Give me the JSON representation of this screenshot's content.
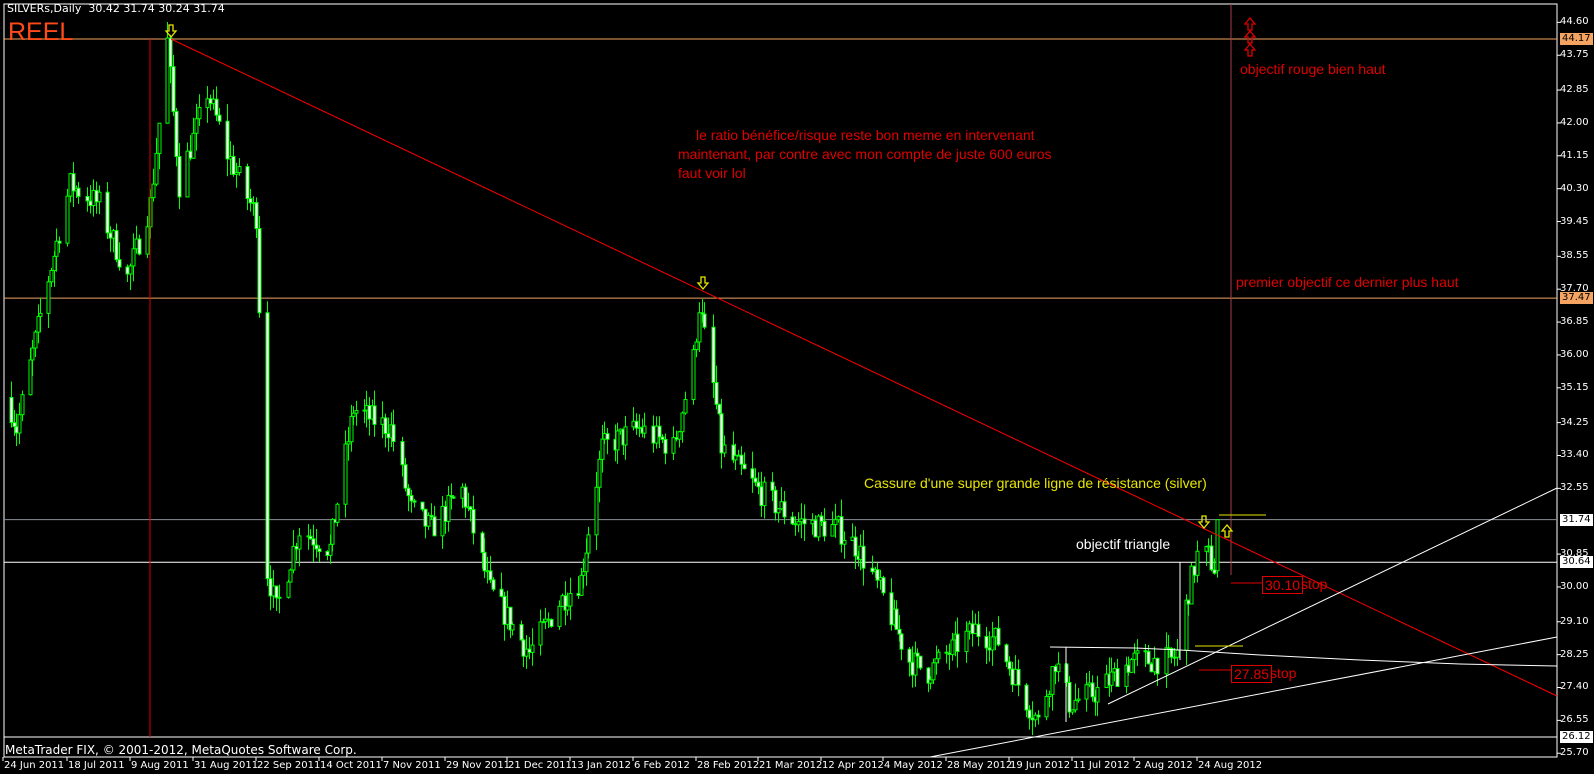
{
  "header": {
    "symbol": "SILVERs,Daily",
    "ohlc": "30.42 31.74 30.24 31.74"
  },
  "account_label": "REEL",
  "footer": {
    "copyright": "MetaTrader FIX, © 2001-2012, MetaQuotes Software Corp."
  },
  "colors": {
    "background": "#000000",
    "candle": "#00ff00",
    "level_line": "#f4a460",
    "trendline": "#ff0000",
    "annotation_red": "#e00000",
    "annotation_yellow": "#e6e600"
  },
  "annotations": {
    "ratio_note": [
      "le ratio bénéfice/risque reste bon meme en intervenant",
      "maintenant, par contre avec mon compte de juste 600 euros",
      "faut voir lol"
    ],
    "red_target": "objectif rouge bien haut",
    "first_target": "premier objectif ce dernier plus haut",
    "breakout": "Cassure d'une super grande ligne de résistance (silver)",
    "triangle_target": "objectif triangle",
    "stop1_value": "30.10",
    "stop1_label": "stop",
    "stop2_value": "27.85",
    "stop2_label": "stop"
  },
  "chart_data": {
    "type": "candlestick",
    "symbol": "SILVERs",
    "timeframe": "Daily",
    "ylim": [
      25.5,
      44.9
    ],
    "price_ticks": [
      "44.60",
      "43.75",
      "42.85",
      "42.00",
      "41.15",
      "40.30",
      "39.45",
      "38.55",
      "37.70",
      "36.85",
      "36.00",
      "35.15",
      "34.25",
      "33.40",
      "32.55",
      "30.85",
      "30.00",
      "29.10",
      "28.25",
      "27.40",
      "26.55",
      "25.70"
    ],
    "price_levels": [
      {
        "value": "44.17",
        "color": "#f4a460"
      },
      {
        "value": "37.47",
        "color": "#f4a460"
      },
      {
        "value": "31.74",
        "color": "#ffffff"
      },
      {
        "value": "30.64",
        "color": "#ffffff"
      },
      {
        "value": "26.12",
        "color": "#ffffff"
      }
    ],
    "date_ticks": [
      "24 Jun 2011",
      "18 Jul 2011",
      "9 Aug 2011",
      "31 Aug 2011",
      "22 Sep 2011",
      "14 Oct 2011",
      "7 Nov 2011",
      "29 Nov 2011",
      "21 Dec 2011",
      "13 Jan 2012",
      "6 Feb 2012",
      "28 Feb 2012",
      "21 Mar 2012",
      "12 Apr 2012",
      "4 May 2012",
      "28 May 2012",
      "19 Jun 2012",
      "11 Jul 2012",
      "2 Aug 2012",
      "24 Aug 2012"
    ],
    "approx_closes": [
      [
        "2011-06-27",
        34.6
      ],
      [
        "2011-06-29",
        34.1
      ],
      [
        "2011-07-07",
        36.7
      ],
      [
        "2011-07-12",
        38.3
      ],
      [
        "2011-07-19",
        40.4
      ],
      [
        "2011-07-29",
        39.9
      ],
      [
        "2011-08-08",
        38.0
      ],
      [
        "2011-08-16",
        39.9
      ],
      [
        "2011-08-22",
        44.1
      ],
      [
        "2011-08-26",
        40.4
      ],
      [
        "2011-09-05",
        42.8
      ],
      [
        "2011-09-12",
        41.2
      ],
      [
        "2011-09-22",
        39.6
      ],
      [
        "2011-09-26",
        30.4
      ],
      [
        "2011-09-29",
        29.4
      ],
      [
        "2011-10-07",
        31.5
      ],
      [
        "2011-10-18",
        31.0
      ],
      [
        "2011-10-27",
        34.6
      ],
      [
        "2011-11-10",
        34.1
      ],
      [
        "2011-11-17",
        32.0
      ],
      [
        "2011-11-24",
        31.5
      ],
      [
        "2011-12-05",
        32.5
      ],
      [
        "2011-12-15",
        29.9
      ],
      [
        "2011-12-29",
        28.3
      ],
      [
        "2012-01-09",
        29.6
      ],
      [
        "2012-01-17",
        30.2
      ],
      [
        "2012-01-25",
        33.6
      ],
      [
        "2012-02-08",
        34.1
      ],
      [
        "2012-02-20",
        33.6
      ],
      [
        "2012-02-27",
        35.9
      ],
      [
        "2012-02-29",
        37.3
      ],
      [
        "2012-03-05",
        35.2
      ],
      [
        "2012-03-08",
        33.6
      ],
      [
        "2012-03-21",
        32.5
      ],
      [
        "2012-04-03",
        31.7
      ],
      [
        "2012-04-18",
        31.5
      ],
      [
        "2012-04-25",
        31.0
      ],
      [
        "2012-05-03",
        29.9
      ],
      [
        "2012-05-14",
        28.1
      ],
      [
        "2012-05-21",
        27.8
      ],
      [
        "2012-06-07",
        28.9
      ],
      [
        "2012-06-15",
        28.6
      ],
      [
        "2012-06-22",
        27.5
      ],
      [
        "2012-06-29",
        26.5
      ],
      [
        "2012-07-05",
        28.1
      ],
      [
        "2012-07-10",
        27.0
      ],
      [
        "2012-07-20",
        27.3
      ],
      [
        "2012-08-01",
        28.1
      ],
      [
        "2012-08-15",
        28.1
      ],
      [
        "2012-08-17",
        28.3
      ],
      [
        "2012-08-21",
        29.9
      ],
      [
        "2012-08-24",
        30.8
      ],
      [
        "2012-08-28",
        30.8
      ],
      [
        "2012-08-30",
        30.5
      ],
      [
        "2012-08-31",
        31.74
      ]
    ],
    "last_bar": {
      "open": 30.42,
      "high": 31.74,
      "low": 30.24,
      "close": 31.74
    }
  }
}
